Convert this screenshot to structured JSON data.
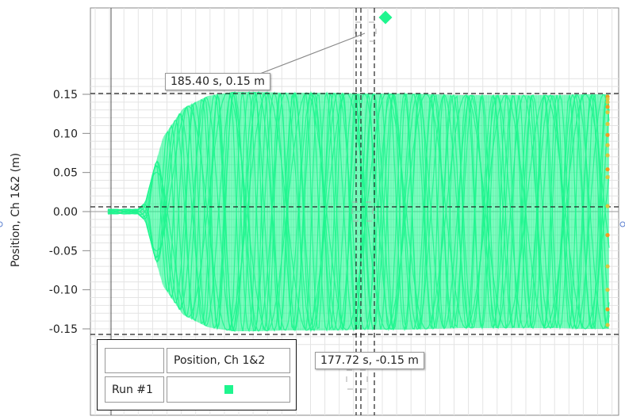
{
  "chart_data": {
    "type": "scatter",
    "ylabel": "Position, Ch 1&2 (m)",
    "ylim": [
      -0.175,
      0.175
    ],
    "yticks": [
      0.15,
      0.1,
      0.05,
      0.0,
      -0.05,
      -0.1,
      -0.15
    ],
    "ytick_labels": [
      "0.15",
      "0.10",
      "0.05",
      "0.00",
      "-0.05",
      "-0.10",
      "-0.15"
    ],
    "grid": true,
    "legend": {
      "header": "Position, Ch 1&2",
      "run_label": "Run #1"
    },
    "series": [
      {
        "name": "Position, Ch 1&2",
        "color": "#1ef58e",
        "envelope": {
          "t_norm": [
            0.0,
            0.06,
            0.075,
            0.09,
            0.11,
            0.15,
            0.2,
            0.25,
            0.3,
            0.35,
            0.4,
            0.45,
            0.5,
            0.55,
            0.6,
            0.65,
            0.7,
            0.75,
            0.8,
            0.85,
            0.9,
            0.95,
            1.0
          ],
          "amplitude": [
            0.003,
            0.003,
            0.012,
            0.05,
            0.095,
            0.132,
            0.148,
            0.153,
            0.153,
            0.152,
            0.152,
            0.152,
            0.151,
            0.151,
            0.151,
            0.15,
            0.149,
            0.149,
            0.149,
            0.149,
            0.149,
            0.15,
            0.15
          ]
        }
      }
    ],
    "annotations": [
      {
        "label": "185.40 s, 0.15 m",
        "value_y": 0.15
      },
      {
        "label": "177.72 s, -0.15 m",
        "value_y": -0.15
      }
    ]
  },
  "colors": {
    "series": "#1ef58e",
    "accent_orange": "#f59a1e",
    "grid": "#e4e4e4",
    "cursor": "#222222"
  }
}
